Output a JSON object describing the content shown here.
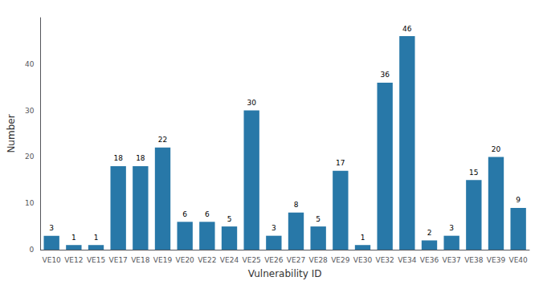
{
  "chart_data": {
    "type": "bar",
    "categories": [
      "VE10",
      "VE12",
      "VE15",
      "VE17",
      "VE18",
      "VE19",
      "VE20",
      "VE22",
      "VE24",
      "VE25",
      "VE26",
      "VE27",
      "VE28",
      "VE29",
      "VE30",
      "VE32",
      "VE34",
      "VE36",
      "VE37",
      "VE38",
      "VE39",
      "VE40"
    ],
    "values": [
      3,
      1,
      1,
      18,
      18,
      22,
      6,
      6,
      5,
      30,
      3,
      8,
      5,
      17,
      1,
      36,
      46,
      2,
      3,
      15,
      20,
      9
    ],
    "color": "#2878a8",
    "xlabel": "Vulnerability ID",
    "ylabel": "Number",
    "ylim": [
      0,
      50
    ],
    "yticks": [
      0,
      10,
      20,
      30,
      40
    ],
    "grid": false,
    "data_labels": true
  }
}
